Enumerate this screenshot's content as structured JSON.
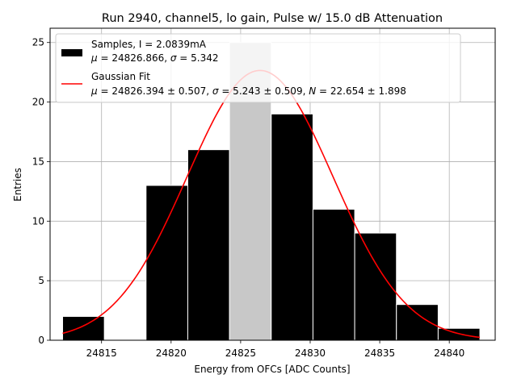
{
  "chart_data": {
    "type": "bar",
    "title": "Run 2940, channel5, lo gain, Pulse w/ 15.0 dB Attenuation",
    "xlabel": "Energy from OFCs [ADC Counts]",
    "ylabel": "Entries",
    "xlim": [
      24811.3,
      24843.3
    ],
    "ylim": [
      0,
      26.2
    ],
    "xticks": [
      24815,
      24820,
      24825,
      24830,
      24835,
      24840
    ],
    "yticks": [
      0,
      5,
      10,
      15,
      20,
      25
    ],
    "grid": true,
    "legend_position": "top-left",
    "colors": {
      "bars": "#000000",
      "bar_edge": "#ffffff",
      "highlight_bar": "#c8c8c8",
      "fit_line": "#ff0000",
      "grid": "#b0b0b0"
    },
    "histogram": {
      "bin_edges": [
        24812.2,
        24815.2,
        24818.2,
        24821.2,
        24824.2,
        24827.2,
        24830.2,
        24833.2,
        24836.2,
        24839.2,
        24842.2
      ],
      "counts": [
        2,
        0,
        13,
        16,
        25,
        19,
        11,
        9,
        3,
        1
      ],
      "highlight_bin": 4
    },
    "fit": {
      "mu": 24826.394,
      "sigma": 5.243,
      "N": 22.654,
      "x_range": [
        24812.2,
        24842.2
      ]
    },
    "legend": {
      "samples_line1": "Samples, I = 2.0839mA",
      "samples_mu_sym": "μ",
      "samples_eq1": " = 24826.866, ",
      "samples_sigma_sym": "σ",
      "samples_eq2": " = 5.342",
      "fit_line1": "Gaussian Fit",
      "fit_mu_sym": "μ",
      "fit_eq1": " = 24826.394 ± 0.507, ",
      "fit_sigma_sym": "σ",
      "fit_eq2": " = 5.243 ± 0.509, ",
      "fit_n_sym": "N",
      "fit_eq3": " = 22.654 ± 1.898"
    }
  }
}
